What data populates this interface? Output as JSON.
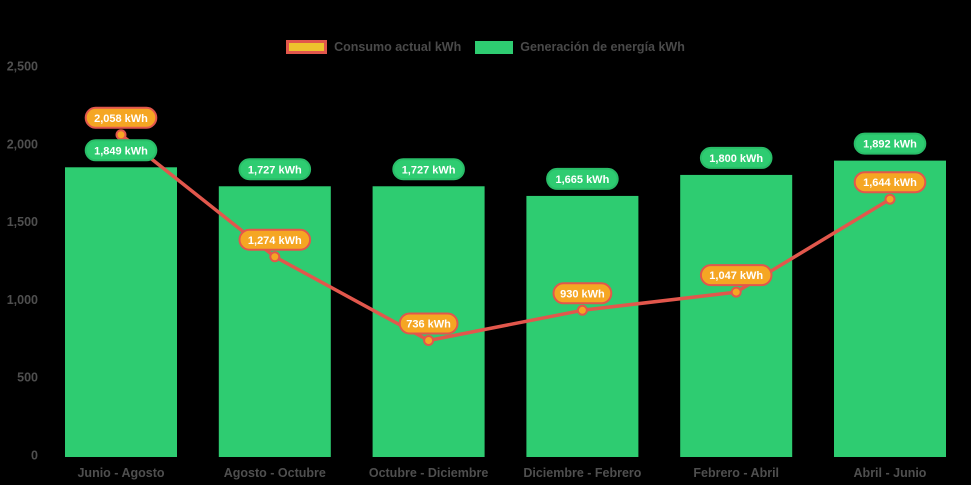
{
  "chart_data": {
    "type": "bar+line",
    "title": "",
    "categories": [
      "Junio - Agosto",
      "Agosto - Octubre",
      "Octubre - Diciembre",
      "Diciembre - Febrero",
      "Febrero - Abril",
      "Abril - Junio"
    ],
    "series": [
      {
        "name": "Consumo actual kWh",
        "type": "line",
        "values": [
          2058,
          1274,
          736,
          930,
          1047,
          1644
        ],
        "value_labels": [
          "2,058 kWh",
          "1,274 kWh",
          "736 kWh",
          "930 kWh",
          "1,047 kWh",
          "1,644 kWh"
        ],
        "line_color": "#e2574c",
        "marker_fill": "#f5a623",
        "marker_stroke": "#e2574c",
        "label_fill": "#f5a623",
        "label_border": "#e2574c",
        "legend_swatch_fill": "#eec32d",
        "legend_swatch_border": "#e2574c"
      },
      {
        "name": "Generación de energía kWh",
        "type": "bar",
        "values": [
          1849,
          1727,
          1727,
          1665,
          1800,
          1892
        ],
        "value_labels": [
          "1,849 kWh",
          "1,727 kWh",
          "1,727 kWh",
          "1,665 kWh",
          "1,800 kWh",
          "1,892 kWh"
        ],
        "bar_color": "#2ecc71",
        "label_fill": "#2ecc71",
        "label_border": "#29bd68",
        "legend_swatch_fill": "#2ecc71"
      }
    ],
    "ylim": [
      0,
      2500
    ],
    "yticks": {
      "values": [
        0,
        500,
        1000,
        1500,
        2000,
        2500
      ],
      "labels": [
        "0",
        "500",
        "1,000",
        "1,500",
        "2,000",
        "2,500"
      ]
    },
    "xlabel": "",
    "ylabel": "",
    "legend_position": "top-center",
    "grid": "off",
    "background": "#000000",
    "axis_text_color": "#4f4f4f",
    "pill_text_color": "#ffffff"
  }
}
